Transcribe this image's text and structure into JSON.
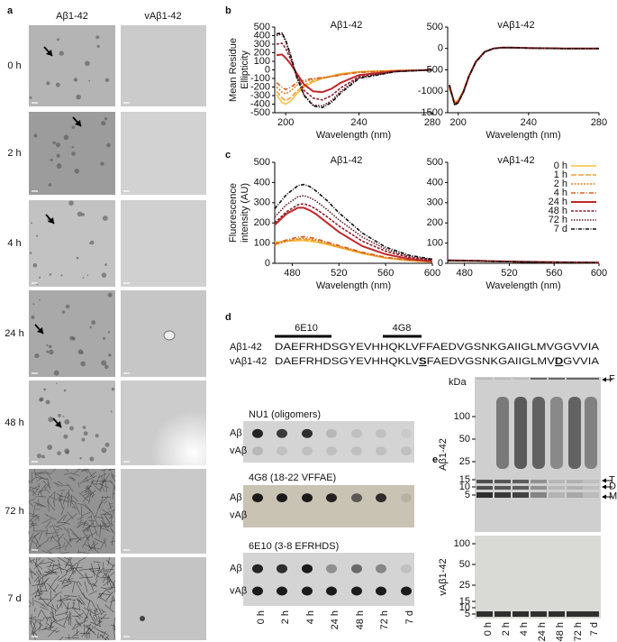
{
  "panel_labels": [
    "a",
    "b",
    "c",
    "d",
    "e"
  ],
  "panel_a": {
    "columns": [
      "Aβ1-42",
      "vAβ1-42"
    ],
    "rows": [
      "0 h",
      "2 h",
      "4 h",
      "24 h",
      "48 h",
      "72 h",
      "7 d"
    ]
  },
  "chart_data": [
    {
      "type": "line",
      "title": "Aβ1-42",
      "ylabel": [
        "Mean Residue",
        "Ellipticity"
      ],
      "xlabel": "Wavelength (nm)",
      "x": [
        195,
        198,
        200,
        203,
        206,
        210,
        215,
        220,
        225,
        230,
        240,
        260,
        280
      ],
      "xlim": [
        194,
        280
      ],
      "ylim": [
        -500,
        500
      ],
      "xticks": [
        200,
        240,
        280
      ],
      "yticks": [
        500,
        400,
        300,
        200,
        100,
        0,
        -100,
        -200,
        -300,
        -400,
        -500
      ],
      "series": [
        {
          "color": "#f5c242",
          "values": [
            -290,
            -380,
            -400,
            -360,
            -280,
            -200,
            -140,
            -100,
            -70,
            -45,
            -20,
            -5,
            0
          ]
        },
        {
          "color": "#f0a030",
          "values": [
            -250,
            -330,
            -360,
            -320,
            -250,
            -180,
            -130,
            -100,
            -75,
            -50,
            -25,
            -10,
            0
          ]
        },
        {
          "color": "#e88020",
          "values": [
            -200,
            -260,
            -280,
            -240,
            -180,
            -140,
            -110,
            -90,
            -75,
            -55,
            -25,
            -10,
            0
          ]
        },
        {
          "color": "#d8601a",
          "values": [
            -150,
            -200,
            -230,
            -200,
            -150,
            -120,
            -100,
            -90,
            -80,
            -60,
            -30,
            -10,
            0
          ]
        },
        {
          "color": "#c0282a",
          "values": [
            170,
            180,
            140,
            60,
            -40,
            -170,
            -250,
            -260,
            -220,
            -150,
            -60,
            -15,
            0
          ]
        },
        {
          "color": "#8a2030",
          "values": [
            300,
            310,
            250,
            110,
            -60,
            -240,
            -330,
            -350,
            -300,
            -210,
            -80,
            -20,
            0
          ]
        },
        {
          "color": "#5a1a25",
          "values": [
            400,
            420,
            330,
            130,
            -90,
            -290,
            -410,
            -420,
            -360,
            -250,
            -90,
            -20,
            0
          ]
        },
        {
          "color": "#111111",
          "values": [
            420,
            430,
            350,
            150,
            -80,
            -300,
            -420,
            -440,
            -380,
            -270,
            -100,
            -20,
            0
          ]
        }
      ]
    },
    {
      "type": "line",
      "title": "vAβ1-42",
      "xlabel": "Wavelength (nm)",
      "x": [
        195,
        198,
        200,
        203,
        206,
        210,
        215,
        220,
        225,
        230,
        240,
        260,
        280
      ],
      "xlim": [
        194,
        280
      ],
      "ylim": [
        -1500,
        500
      ],
      "xticks": [
        200,
        240,
        280
      ],
      "yticks": [
        500,
        0,
        -500,
        -1000,
        -1500
      ],
      "series": [
        {
          "color": "#f5c242",
          "values": [
            -950,
            -1250,
            -1200,
            -980,
            -640,
            -300,
            -80,
            0,
            20,
            20,
            10,
            0,
            0
          ]
        },
        {
          "color": "#f0a030",
          "values": [
            -930,
            -1270,
            -1220,
            -990,
            -650,
            -300,
            -80,
            0,
            20,
            20,
            10,
            0,
            0
          ]
        },
        {
          "color": "#e88020",
          "values": [
            -910,
            -1280,
            -1230,
            -1000,
            -650,
            -300,
            -80,
            0,
            20,
            20,
            10,
            0,
            0
          ]
        },
        {
          "color": "#d8601a",
          "values": [
            -900,
            -1290,
            -1240,
            -1000,
            -650,
            -300,
            -80,
            0,
            20,
            20,
            10,
            0,
            0
          ]
        },
        {
          "color": "#c0282a",
          "values": [
            -880,
            -1300,
            -1250,
            -1000,
            -660,
            -310,
            -80,
            0,
            20,
            20,
            10,
            0,
            0
          ]
        },
        {
          "color": "#8a2030",
          "values": [
            -870,
            -1300,
            -1260,
            -1010,
            -660,
            -310,
            -80,
            0,
            20,
            20,
            10,
            0,
            0
          ]
        },
        {
          "color": "#5a1a25",
          "values": [
            -860,
            -1310,
            -1260,
            -1010,
            -660,
            -310,
            -80,
            0,
            20,
            20,
            10,
            0,
            0
          ]
        },
        {
          "color": "#111111",
          "values": [
            -850,
            -1320,
            -1270,
            -1020,
            -670,
            -320,
            -90,
            0,
            20,
            20,
            10,
            0,
            0
          ]
        }
      ]
    },
    {
      "type": "line",
      "title": "Aβ1-42",
      "ylabel": [
        "Fluorescence",
        "intensity (AU)"
      ],
      "xlabel": "Wavelength (nm)",
      "x": [
        465,
        475,
        485,
        490,
        495,
        500,
        510,
        520,
        540,
        560,
        580,
        600
      ],
      "xlim": [
        465,
        600
      ],
      "ylim": [
        0,
        500
      ],
      "xticks": [
        480,
        520,
        560,
        600
      ],
      "yticks": [
        500,
        400,
        300,
        200,
        100,
        0
      ],
      "series": [
        {
          "color": "#f5c242",
          "values": [
            105,
            110,
            112,
            112,
            110,
            105,
            93,
            78,
            48,
            26,
            13,
            6
          ]
        },
        {
          "color": "#f0a030",
          "values": [
            100,
            112,
            118,
            118,
            115,
            110,
            97,
            80,
            50,
            27,
            14,
            7
          ]
        },
        {
          "color": "#e88020",
          "values": [
            90,
            108,
            122,
            124,
            120,
            115,
            100,
            83,
            52,
            28,
            15,
            7
          ]
        },
        {
          "color": "#d8601a",
          "values": [
            95,
            115,
            130,
            132,
            128,
            122,
            105,
            88,
            55,
            30,
            16,
            8
          ]
        },
        {
          "color": "#c0282a",
          "values": [
            190,
            245,
            275,
            275,
            262,
            245,
            200,
            155,
            85,
            45,
            22,
            10
          ]
        },
        {
          "color": "#8a2030",
          "values": [
            200,
            255,
            290,
            295,
            285,
            270,
            230,
            185,
            110,
            60,
            30,
            15
          ]
        },
        {
          "color": "#5a1a25",
          "values": [
            230,
            290,
            330,
            335,
            325,
            310,
            265,
            215,
            130,
            70,
            35,
            18
          ]
        },
        {
          "color": "#111111",
          "values": [
            270,
            340,
            385,
            390,
            380,
            360,
            310,
            250,
            150,
            80,
            40,
            20
          ]
        }
      ]
    },
    {
      "type": "line",
      "title": "vAβ1-42",
      "xlabel": "Wavelength (nm)",
      "x": [
        465,
        475,
        485,
        490,
        495,
        500,
        510,
        520,
        540,
        560,
        580,
        600
      ],
      "xlim": [
        465,
        600
      ],
      "ylim": [
        0,
        500
      ],
      "xticks": [
        480,
        520,
        560,
        600
      ],
      "yticks": [
        500,
        400,
        300,
        200,
        100,
        0
      ],
      "series": [
        {
          "name": "0 h",
          "color": "#f5c242",
          "values": [
            12,
            12,
            11,
            11,
            10,
            10,
            9,
            8,
            6,
            5,
            4,
            3
          ]
        },
        {
          "name": "1 h",
          "color": "#f0a030",
          "values": [
            13,
            12,
            12,
            11,
            11,
            10,
            9,
            8,
            6,
            5,
            4,
            3
          ]
        },
        {
          "name": "2 h",
          "color": "#e88020",
          "values": [
            12,
            12,
            12,
            11,
            11,
            10,
            9,
            8,
            7,
            5,
            4,
            3
          ]
        },
        {
          "name": "4 h",
          "color": "#d8601a",
          "values": [
            14,
            13,
            12,
            12,
            11,
            11,
            10,
            8,
            7,
            5,
            4,
            3
          ]
        },
        {
          "name": "24 h",
          "color": "#c0282a",
          "values": [
            15,
            14,
            13,
            13,
            12,
            11,
            10,
            9,
            7,
            6,
            4,
            3
          ]
        },
        {
          "name": "48 h",
          "color": "#8a2030",
          "values": [
            13,
            13,
            12,
            12,
            11,
            11,
            10,
            8,
            7,
            5,
            4,
            3
          ]
        },
        {
          "name": "72 h",
          "color": "#5a1a25",
          "values": [
            12,
            12,
            11,
            11,
            11,
            10,
            9,
            8,
            6,
            5,
            4,
            3
          ]
        },
        {
          "name": "7 d",
          "color": "#111111",
          "values": [
            14,
            13,
            12,
            12,
            11,
            10,
            9,
            8,
            6,
            5,
            4,
            3
          ]
        }
      ]
    }
  ],
  "panel_d": {
    "epitopes": [
      "6E10",
      "4G8"
    ],
    "sequences": [
      {
        "name": "Aβ1-42",
        "segments": [
          "DAEFRHDSGYEVHHQKLVFFAEDVGSNKGAIIGLMVGGVVIA"
        ]
      },
      {
        "name": "vAβ1-42",
        "segments": [
          "DAEFRHDSGYEVHHQKLV",
          "S",
          "FAEDVGSNKGAIIGLMV",
          "D",
          "GVVIA"
        ]
      }
    ],
    "blots": [
      {
        "title": "NU1 (oligomers)",
        "rows": [
          "Aβ",
          "vAβ"
        ]
      },
      {
        "title": "4G8 (18-22 VFFAE)",
        "rows": [
          "Aβ",
          "vAβ"
        ]
      },
      {
        "title": "6E10 (3-8 EFRHDS)",
        "rows": [
          "Aβ",
          "vAβ"
        ]
      }
    ],
    "lanes": [
      "0 h",
      "2 h",
      "4 h",
      "24 h",
      "48 h",
      "72 h",
      "7 d"
    ]
  },
  "panel_e": {
    "unit": "kDa",
    "blots": [
      {
        "label": "Aβ1-42",
        "markers": [
          100,
          50,
          25,
          15,
          10,
          5
        ]
      },
      {
        "label": "vAβ1-42",
        "markers": [
          100,
          50,
          25,
          15,
          10,
          5
        ]
      }
    ],
    "bands": [
      "F",
      "T",
      "D",
      "M"
    ],
    "lanes": [
      "0 h",
      "2 h",
      "4 h",
      "24 h",
      "48 h",
      "72 h",
      "7 d"
    ]
  }
}
